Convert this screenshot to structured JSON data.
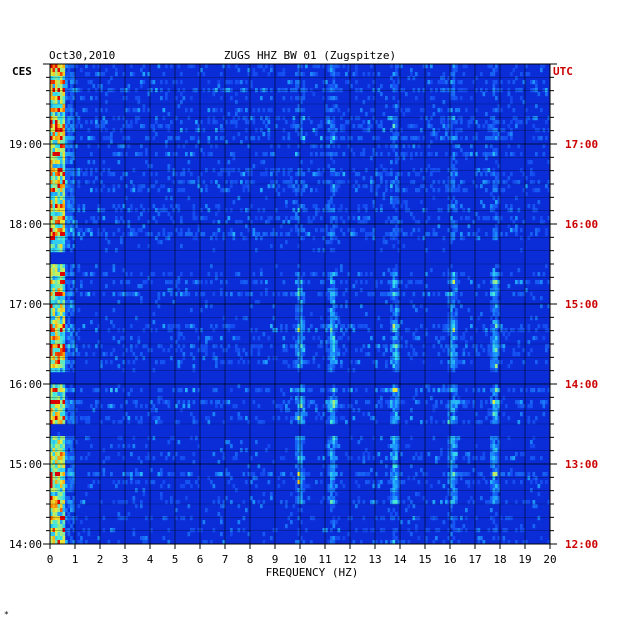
{
  "chart_data": {
    "type": "heatmap",
    "title": "ZUGS HHZ BW 01 (Zugspitze)",
    "date": "Oct30,2010",
    "left_timezone": "CES",
    "right_timezone": "UTC",
    "xlabel": "FREQUENCY (HZ)",
    "x_ticks": [
      "0",
      "1",
      "2",
      "3",
      "4",
      "5",
      "6",
      "7",
      "8",
      "9",
      "10",
      "11",
      "12",
      "13",
      "14",
      "15",
      "16",
      "17",
      "18",
      "19",
      "20"
    ],
    "xlim": [
      0,
      20
    ],
    "left_time_ticks": [
      "19:00",
      "18:00",
      "17:00",
      "16:00",
      "15:00",
      "14:00"
    ],
    "right_time_ticks": [
      "17:00",
      "16:00",
      "15:00",
      "14:00",
      "13:00",
      "12:00"
    ],
    "time_range_local": [
      "14:00",
      "20:00"
    ],
    "grid": true,
    "colors": {
      "background": "#0a2dd8",
      "low": "#0818c0",
      "grid": "#000000",
      "utc_label": "#cc0000",
      "frame_text": "#000000"
    },
    "quiet_bands_local": [
      "17:35",
      "16:05",
      "15:25"
    ],
    "noise_lines_hz": [
      0.3,
      10.0,
      11.3,
      13.8,
      16.1,
      17.8
    ]
  },
  "footer_mark": "*"
}
